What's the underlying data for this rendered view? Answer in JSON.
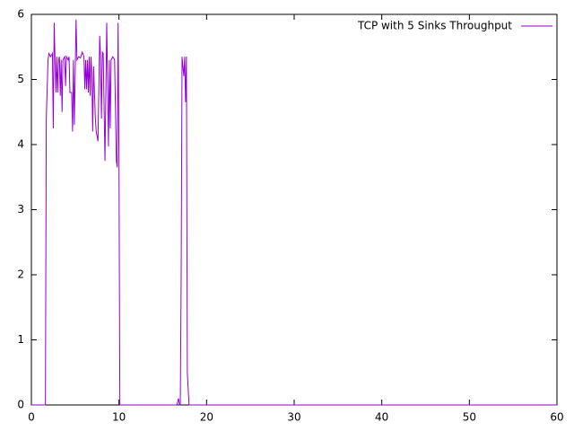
{
  "chart_data": {
    "type": "line",
    "legend": "top right",
    "xlim": [
      0,
      60
    ],
    "xticks": [
      0,
      10,
      20,
      30,
      40,
      50,
      60
    ],
    "ylim": [
      0,
      6
    ],
    "yticks": [
      0,
      1,
      2,
      3,
      4,
      5,
      6
    ],
    "grid": false,
    "series": [
      {
        "name": "TCP with 5 Sinks Throughput",
        "color": "#9400d3",
        "x": [
          0,
          1.6,
          1.7,
          1.9,
          2.0,
          2.2,
          2.4,
          2.5,
          2.6,
          2.7,
          2.8,
          2.9,
          3.0,
          3.1,
          3.2,
          3.3,
          3.4,
          3.5,
          3.6,
          3.8,
          3.9,
          4.0,
          4.2,
          4.3,
          4.4,
          4.6,
          4.7,
          4.8,
          4.9,
          5.1,
          5.2,
          5.4,
          5.6,
          5.8,
          6.0,
          6.1,
          6.2,
          6.3,
          6.4,
          6.5,
          6.6,
          6.7,
          6.8,
          6.9,
          7.0,
          7.1,
          7.3,
          7.4,
          7.6,
          7.8,
          7.9,
          8.0,
          8.1,
          8.2,
          8.4,
          8.6,
          8.7,
          8.8,
          8.9,
          9.0,
          9.1,
          9.3,
          9.5,
          9.7,
          9.8,
          9.9,
          10.0,
          10.1,
          16.6,
          16.8,
          16.9,
          17.0,
          17.1,
          17.2,
          17.4,
          17.5,
          17.6,
          17.7,
          17.8,
          18.0,
          60
        ],
        "values": [
          0,
          0,
          4.4,
          5.3,
          5.4,
          5.35,
          5.4,
          4.25,
          5.87,
          5.3,
          4.8,
          5.35,
          4.8,
          5.3,
          5.35,
          4.75,
          5.3,
          4.5,
          5.3,
          5.35,
          4.9,
          5.35,
          5.3,
          5.35,
          4.8,
          4.8,
          4.2,
          5.3,
          4.3,
          5.92,
          5.3,
          5.35,
          5.33,
          5.42,
          5.35,
          4.85,
          5.3,
          4.85,
          5.3,
          4.8,
          5.35,
          4.75,
          5.35,
          5.1,
          4.2,
          5.2,
          4.4,
          4.2,
          4.05,
          5.67,
          5.3,
          4.4,
          5.42,
          5.4,
          3.75,
          5.87,
          4.9,
          3.97,
          5.3,
          4.25,
          5.3,
          5.35,
          5.3,
          3.75,
          3.65,
          5.87,
          3.7,
          0,
          0,
          0.1,
          0,
          0,
          2,
          5.35,
          5.05,
          5.35,
          4.65,
          5.35,
          0.5,
          0,
          0
        ]
      }
    ]
  }
}
